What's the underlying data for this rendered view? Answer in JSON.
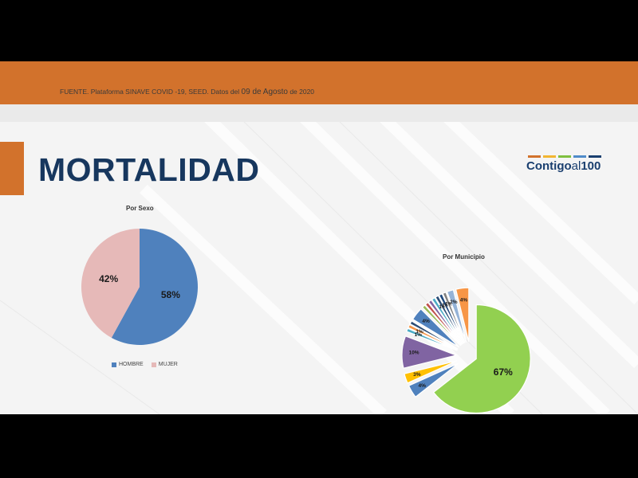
{
  "header": {
    "source_prefix": "FUENTE. Plataforma SINAVE COVID -19, SEED. Datos del",
    "source_date": "09 de Agosto",
    "source_suffix": "de 2020"
  },
  "title": "MORTALIDAD",
  "logo": {
    "text_main": "Contigo",
    "text_al": "al",
    "text_num": "100",
    "bar_colors": [
      "#d2722c",
      "#f2b632",
      "#7fbf3f",
      "#4f8bc9",
      "#1a3f6f"
    ]
  },
  "chart_data": [
    {
      "type": "pie",
      "title": "Por Sexo",
      "categories": [
        "HOMBRE",
        "MUJER"
      ],
      "values": [
        58,
        42
      ],
      "labels": [
        "58%",
        "42%"
      ],
      "colors": [
        "#4f81bd",
        "#e6b9b8"
      ],
      "legend": "bottom"
    },
    {
      "type": "pie",
      "title": "Por Municipio",
      "values": [
        67,
        4,
        3,
        10,
        1,
        1,
        1,
        4,
        1,
        1,
        1,
        1,
        1,
        1,
        1,
        2,
        4
      ],
      "labels": [
        "67%",
        "4%",
        "3%",
        "10%",
        "1%",
        "1%",
        "",
        "4%",
        "",
        "",
        "",
        "",
        "1%",
        "1%",
        "1%",
        "2%",
        "4%"
      ],
      "colors": [
        "#92d050",
        "#4f81bd",
        "#ffc000",
        "#8064a2",
        "#4bacc6",
        "#f79646",
        "#2c4d75",
        "#4f81bd",
        "#9bbb59",
        "#c0504d",
        "#8064a2",
        "#4bacc6",
        "#2c4d75",
        "#1f497d",
        "#7f7f7f",
        "#95b3d7",
        "#f79646"
      ],
      "exploded": true
    }
  ]
}
